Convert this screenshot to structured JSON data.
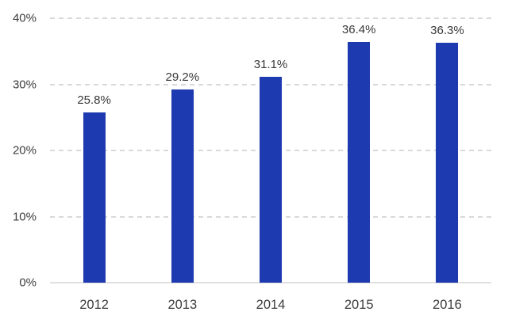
{
  "chart_data": {
    "type": "bar",
    "categories": [
      "2012",
      "2013",
      "2014",
      "2015",
      "2016"
    ],
    "values": [
      25.8,
      29.2,
      31.1,
      36.4,
      36.3
    ],
    "value_labels": [
      "25.8%",
      "29.2%",
      "31.1%",
      "36.4%",
      "36.3%"
    ],
    "title": "",
    "xlabel": "",
    "ylabel": "",
    "ylim": [
      0,
      40
    ],
    "yticks": [
      0,
      10,
      20,
      30,
      40
    ],
    "ytick_labels": [
      "0%",
      "10%",
      "20%",
      "30%",
      "40%"
    ],
    "grid": "horizontal dashed gridlines at each y tick except 0, solid baseline at 0",
    "legend": "none",
    "colors": {
      "bar": "#1e3ab0",
      "tick_text": "#3d3d3d",
      "value_label_text": "#383838",
      "gridline": "#d9d9d9",
      "baseline": "#e0e0e0",
      "background": "#ffffff"
    }
  }
}
